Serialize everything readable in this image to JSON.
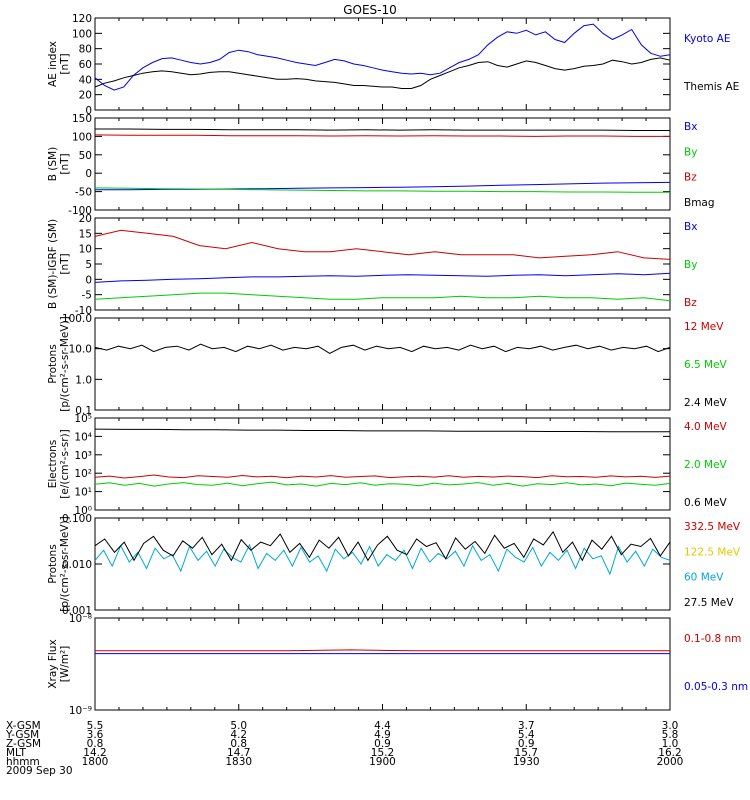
{
  "title": "GOES-10",
  "colors": {
    "black": "#000000",
    "red": "#cc0000",
    "green": "#00cc00",
    "blue": "#0000ee",
    "cyan": "#00a8d8",
    "yellow": "#e6c800"
  },
  "chart_data": [
    {
      "type": "line",
      "panel": "ae",
      "ylabel": [
        "AE index",
        "[nT]"
      ],
      "ylim": [
        0,
        120
      ],
      "yticks": [
        0,
        20,
        40,
        60,
        80,
        100,
        120
      ],
      "ylog": false,
      "series": [
        {
          "name": "Kyoto AE",
          "color": "blue",
          "values": [
            42,
            32,
            26,
            30,
            45,
            55,
            62,
            67,
            68,
            65,
            62,
            60,
            62,
            66,
            75,
            78,
            76,
            72,
            70,
            68,
            65,
            62,
            60,
            58,
            62,
            66,
            64,
            60,
            58,
            55,
            52,
            50,
            48,
            47,
            48,
            46,
            48,
            55,
            62,
            66,
            72,
            85,
            95,
            102,
            100,
            104,
            98,
            102,
            92,
            88,
            100,
            110,
            112,
            100,
            92,
            98,
            105,
            85,
            74,
            70,
            72
          ]
        },
        {
          "name": "Themis AE",
          "color": "black",
          "values": [
            30,
            35,
            38,
            42,
            45,
            48,
            50,
            51,
            50,
            48,
            46,
            47,
            49,
            50,
            50,
            48,
            46,
            44,
            42,
            40,
            40,
            41,
            40,
            38,
            37,
            36,
            34,
            32,
            32,
            31,
            30,
            30,
            28,
            28,
            32,
            40,
            45,
            50,
            55,
            58,
            62,
            63,
            58,
            56,
            60,
            64,
            62,
            58,
            54,
            52,
            54,
            57,
            58,
            60,
            65,
            63,
            60,
            62,
            66,
            68,
            65
          ]
        }
      ]
    },
    {
      "type": "line",
      "panel": "bsm",
      "ylabel": [
        "B (SM)",
        "[nT]"
      ],
      "ylim": [
        -100,
        150
      ],
      "yticks": [
        -100,
        -50,
        0,
        50,
        100,
        150
      ],
      "ylog": false,
      "series": [
        {
          "name": "Bx",
          "color": "blue",
          "values": [
            -45,
            -45,
            -44,
            -44,
            -43,
            -42,
            -41,
            -40,
            -39,
            -38,
            -37,
            -35,
            -33,
            -31,
            -29,
            -27,
            -26,
            -25
          ]
        },
        {
          "name": "By",
          "color": "green",
          "values": [
            -40,
            -41,
            -42,
            -43,
            -44,
            -45,
            -46,
            -47,
            -48,
            -48,
            -49,
            -49,
            -50,
            -50,
            -51,
            -51,
            -52,
            -52
          ]
        },
        {
          "name": "Bz",
          "color": "red",
          "values": [
            104,
            103,
            103,
            103,
            102,
            102,
            102,
            101,
            102,
            101,
            102,
            101,
            101,
            100,
            101,
            101,
            100,
            100
          ]
        },
        {
          "name": "Bmag",
          "color": "black",
          "values": [
            120,
            120,
            119,
            119,
            118,
            118,
            118,
            117,
            118,
            117,
            118,
            117,
            117,
            117,
            117,
            117,
            116,
            116
          ]
        }
      ]
    },
    {
      "type": "line",
      "panel": "bdiff",
      "ylabel": [
        "B (SM)-IGRF (SM)",
        "[nT]"
      ],
      "ylim": [
        -10,
        20
      ],
      "yticks": [
        -10,
        -5,
        0,
        5,
        10,
        15,
        20
      ],
      "ylog": false,
      "series": [
        {
          "name": "Bx",
          "color": "blue",
          "values": [
            -1,
            -0.5,
            -0.3,
            0,
            0.2,
            0.5,
            0.8,
            0.8,
            1,
            1.2,
            1,
            1.3,
            1.5,
            1.3,
            1.2,
            1,
            1.3,
            1.5,
            1.2,
            1.5,
            1.8,
            1.5,
            2
          ]
        },
        {
          "name": "By",
          "color": "green",
          "values": [
            -6.5,
            -6,
            -5.5,
            -5,
            -4.5,
            -4.5,
            -5,
            -5.5,
            -6,
            -6.5,
            -6.5,
            -6,
            -6,
            -6,
            -5.5,
            -6,
            -6,
            -5.5,
            -6,
            -6,
            -6.5,
            -6,
            -7
          ]
        },
        {
          "name": "Bz",
          "color": "red",
          "values": [
            14,
            16,
            15,
            14,
            11,
            10,
            12,
            10,
            9,
            9,
            10,
            9,
            8,
            9,
            8,
            8,
            8,
            7,
            7.5,
            8,
            9,
            7,
            6.5
          ]
        }
      ]
    },
    {
      "type": "line",
      "panel": "protons_lo",
      "ylabel": [
        "Protons",
        "[p/(cm²-s-sr-MeV)]"
      ],
      "ylim": [
        0.1,
        100
      ],
      "yticks": [
        0.1,
        1,
        10,
        100
      ],
      "ytick_labels": [
        "0.1",
        "1.0",
        "10.0",
        "100.0"
      ],
      "ylog": true,
      "series": [
        {
          "name": "12 MeV",
          "color": "red",
          "values": []
        },
        {
          "name": "6.5 MeV",
          "color": "green",
          "values": []
        },
        {
          "name": "2.4 MeV",
          "color": "black",
          "values": [
            11,
            9,
            12,
            10,
            13,
            8,
            11,
            12,
            9,
            14,
            10,
            11,
            8,
            12,
            10,
            13,
            9,
            11,
            10,
            12,
            7,
            11,
            13,
            9,
            12,
            10,
            11,
            8,
            12,
            10,
            11,
            9,
            13,
            10,
            12,
            8,
            11,
            10,
            12,
            9,
            11,
            13,
            10,
            12,
            9,
            11,
            10,
            12,
            8,
            11
          ]
        }
      ]
    },
    {
      "type": "line",
      "panel": "electrons",
      "ylabel": [
        "Electrons",
        "[e/(cm²-s-sr)]"
      ],
      "ylim": [
        1,
        100000
      ],
      "yticks": [
        1,
        10,
        100,
        1000,
        10000,
        100000
      ],
      "ytick_labels": [
        "10⁰",
        "10¹",
        "10²",
        "10³",
        "10⁴",
        "10⁵"
      ],
      "ylog": true,
      "series": [
        {
          "name": "4.0 MeV",
          "color": "red",
          "values": [
            60,
            70,
            55,
            65,
            80,
            62,
            58,
            72,
            66,
            60,
            75,
            63,
            68,
            57,
            70,
            62,
            74,
            60,
            66,
            71,
            58,
            64,
            69,
            61,
            73,
            60,
            67,
            62,
            70,
            65,
            58,
            72,
            64,
            66,
            60,
            71,
            63,
            68,
            59,
            70
          ]
        },
        {
          "name": "2.0 MeV",
          "color": "green",
          "values": [
            25,
            30,
            22,
            28,
            20,
            26,
            31,
            24,
            22,
            29,
            21,
            27,
            33,
            23,
            26,
            20,
            28,
            24,
            30,
            22,
            27,
            25,
            21,
            29,
            23,
            26,
            31,
            22,
            28,
            20,
            27,
            24,
            30,
            23,
            26,
            21,
            29,
            25,
            22,
            28
          ]
        },
        {
          "name": "0.6 MeV",
          "color": "black",
          "values": [
            25000,
            24000,
            24000,
            23000,
            23000,
            22000,
            22000,
            21000,
            21000,
            20000,
            20000,
            20000,
            19000,
            19000,
            19000,
            18500,
            18500,
            18000,
            18000,
            18000
          ]
        }
      ]
    },
    {
      "type": "line",
      "panel": "protons_hi",
      "ylabel": [
        "Protons",
        "[p/(cm²-s-sr-MeV)]"
      ],
      "ylim": [
        0.001,
        0.1
      ],
      "yticks": [
        0.001,
        0.01,
        0.1
      ],
      "ytick_labels": [
        "0.001",
        "0.010",
        "0.100"
      ],
      "ylog": true,
      "series": [
        {
          "name": "332.5 MeV",
          "color": "red",
          "values": []
        },
        {
          "name": "122.5 MeV",
          "color": "yellow",
          "values": []
        },
        {
          "name": "60 MeV",
          "color": "cyan",
          "values": [
            0.012,
            0.02,
            0.009,
            0.025,
            0.011,
            0.018,
            0.008,
            0.022,
            0.013,
            0.016,
            0.007,
            0.024,
            0.012,
            0.019,
            0.009,
            0.021,
            0.014,
            0.011,
            0.026,
            0.008,
            0.017,
            0.012,
            0.02,
            0.009,
            0.023,
            0.011,
            0.015,
            0.007,
            0.021,
            0.013,
            0.018,
            0.01,
            0.024,
            0.009,
            0.016,
            0.012,
            0.02,
            0.008,
            0.022,
            0.011,
            0.017,
            0.013,
            0.019,
            0.009,
            0.025,
            0.012,
            0.016,
            0.007,
            0.021,
            0.014,
            0.011,
            0.023,
            0.009,
            0.018,
            0.012,
            0.02,
            0.008,
            0.022,
            0.013,
            0.015,
            0.006,
            0.024,
            0.011,
            0.019,
            0.009,
            0.021,
            0.014,
            0.012
          ]
        },
        {
          "name": "27.5 MeV",
          "color": "black",
          "values": [
            0.025,
            0.035,
            0.018,
            0.03,
            0.012,
            0.028,
            0.04,
            0.02,
            0.015,
            0.032,
            0.022,
            0.038,
            0.016,
            0.027,
            0.012,
            0.034,
            0.02,
            0.03,
            0.025,
            0.045,
            0.018,
            0.028,
            0.014,
            0.033,
            0.022,
            0.038,
            0.015,
            0.03,
            0.012,
            0.026,
            0.04,
            0.02,
            0.016,
            0.035,
            0.024,
            0.029,
            0.013,
            0.037,
            0.021,
            0.031,
            0.017,
            0.042,
            0.022,
            0.028,
            0.014,
            0.035,
            0.026,
            0.05,
            0.018,
            0.03,
            0.012,
            0.033,
            0.021,
            0.04,
            0.016,
            0.027,
            0.024,
            0.036,
            0.015,
            0.03
          ]
        }
      ]
    },
    {
      "type": "line",
      "panel": "xray",
      "ylabel": [
        "Xray Flux",
        "[W/m²]"
      ],
      "ylim": [
        1e-09,
        1e-08
      ],
      "yticks": [
        1e-09,
        1e-08
      ],
      "ytick_labels": [
        "10⁻⁹",
        "10⁻⁸"
      ],
      "ylog": true,
      "series": [
        {
          "name": "0.1-0.8 nm",
          "color": "red",
          "values": [
            4.4e-09,
            4.4e-09,
            4.4e-09,
            4.4e-09,
            4.5e-09,
            4.4e-09,
            4.4e-09,
            4.4e-09,
            4.4e-09,
            4.4e-09
          ]
        },
        {
          "name": "0.05-0.3 nm",
          "color": "blue",
          "values": [
            4.1e-09,
            4.1e-09,
            4.1e-09,
            4.1e-09,
            4.1e-09,
            4.1e-09,
            4.1e-09,
            4.1e-09,
            4.1e-09,
            4.1e-09
          ]
        }
      ]
    }
  ],
  "orbit_rows": [
    {
      "label": "X-GSM",
      "values": [
        "5.5",
        "5.0",
        "4.4",
        "3.7",
        "3.0"
      ]
    },
    {
      "label": "Y-GSM",
      "values": [
        "3.6",
        "4.2",
        "4.9",
        "5.4",
        "5.8"
      ]
    },
    {
      "label": "Z-GSM",
      "values": [
        "0.8",
        "0.8",
        "0.9",
        "0.9",
        "1.0"
      ]
    },
    {
      "label": "MLT",
      "values": [
        "14.2",
        "14.7",
        "15.2",
        "15.7",
        "16.2"
      ]
    },
    {
      "label": "hhmm",
      "values": [
        "1800",
        "1830",
        "1900",
        "1930",
        "2000"
      ]
    }
  ],
  "date": "2009 Sep 30"
}
